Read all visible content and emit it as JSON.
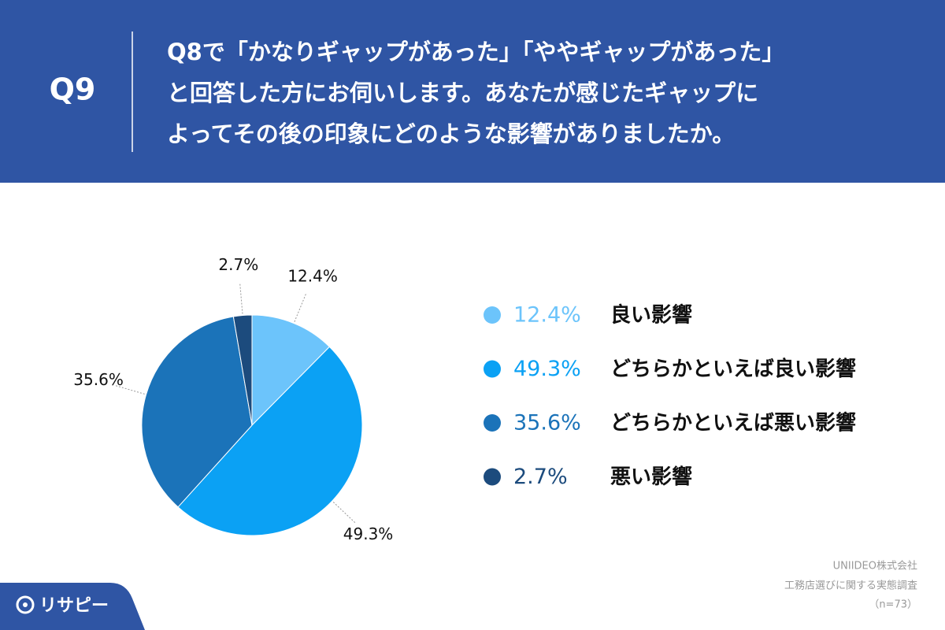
{
  "header": {
    "badge": "Q9",
    "question_lines": [
      "Q8で「かなりギャップがあった」「ややギャップがあった」",
      "と回答した方にお伺いします。あなたが感じたギャップに",
      "よってその後の印象にどのような影響がありましたか。"
    ]
  },
  "chart_data": {
    "type": "pie",
    "categories": [
      "良い影響",
      "どちらかといえば良い影響",
      "どちらかといえば悪い影響",
      "悪い影響"
    ],
    "values": [
      12.4,
      49.3,
      35.6,
      2.7
    ],
    "value_labels": [
      "12.4%",
      "49.3%",
      "35.6%",
      "2.7%"
    ],
    "colors": [
      "#6cc4fb",
      "#0ba1f4",
      "#1b73b9",
      "#1c4b7d"
    ]
  },
  "footer": {
    "lines": [
      "UNIIDEO株式会社",
      "工務店選びに関する実態調査",
      "（n=73）"
    ]
  },
  "logo": {
    "text": "リサピー"
  }
}
